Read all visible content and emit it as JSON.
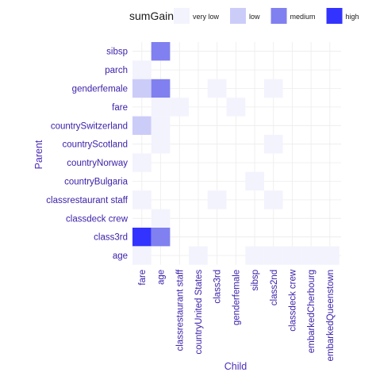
{
  "chart_data": {
    "type": "heatmap",
    "title": "",
    "xlabel": "Child",
    "ylabel": "Parent",
    "legend": {
      "title": "sumGain",
      "position": "top",
      "levels": [
        {
          "label": "very low",
          "color": "#f3f3fe"
        },
        {
          "label": "low",
          "color": "#ccccf9"
        },
        {
          "label": "medium",
          "color": "#8080f0"
        },
        {
          "label": "high",
          "color": "#3333ff"
        }
      ]
    },
    "x_categories": [
      "fare",
      "age",
      "classrestaurant staff",
      "countryUnited States",
      "class3rd",
      "genderfemale",
      "sibsp",
      "class2nd",
      "classdeck crew",
      "embarkedCherbourg",
      "embarkedQueenstown"
    ],
    "y_categories": [
      "sibsp",
      "parch",
      "genderfemale",
      "fare",
      "countrySwitzerland",
      "countryScotland",
      "countryNorway",
      "countryBulgaria",
      "classrestaurant staff",
      "classdeck crew",
      "class3rd",
      "age"
    ],
    "cells": [
      {
        "parent": "sibsp",
        "child": "age",
        "level": "medium"
      },
      {
        "parent": "parch",
        "child": "fare",
        "level": "very low"
      },
      {
        "parent": "genderfemale",
        "child": "fare",
        "level": "low"
      },
      {
        "parent": "genderfemale",
        "child": "age",
        "level": "medium"
      },
      {
        "parent": "genderfemale",
        "child": "class3rd",
        "level": "very low"
      },
      {
        "parent": "genderfemale",
        "child": "class2nd",
        "level": "very low"
      },
      {
        "parent": "fare",
        "child": "age",
        "level": "very low"
      },
      {
        "parent": "fare",
        "child": "classrestaurant staff",
        "level": "very low"
      },
      {
        "parent": "fare",
        "child": "genderfemale",
        "level": "very low"
      },
      {
        "parent": "countrySwitzerland",
        "child": "fare",
        "level": "low"
      },
      {
        "parent": "countrySwitzerland",
        "child": "age",
        "level": "very low"
      },
      {
        "parent": "countryScotland",
        "child": "age",
        "level": "very low"
      },
      {
        "parent": "countryScotland",
        "child": "class2nd",
        "level": "very low"
      },
      {
        "parent": "countryNorway",
        "child": "fare",
        "level": "very low"
      },
      {
        "parent": "countryBulgaria",
        "child": "sibsp",
        "level": "very low"
      },
      {
        "parent": "classrestaurant staff",
        "child": "fare",
        "level": "very low"
      },
      {
        "parent": "classrestaurant staff",
        "child": "class3rd",
        "level": "very low"
      },
      {
        "parent": "classrestaurant staff",
        "child": "class2nd",
        "level": "very low"
      },
      {
        "parent": "classdeck crew",
        "child": "age",
        "level": "very low"
      },
      {
        "parent": "class3rd",
        "child": "fare",
        "level": "high"
      },
      {
        "parent": "class3rd",
        "child": "age",
        "level": "medium"
      },
      {
        "parent": "age",
        "child": "fare",
        "level": "very low"
      },
      {
        "parent": "age",
        "child": "countryUnited States",
        "level": "very low"
      },
      {
        "parent": "age",
        "child": "sibsp",
        "level": "very low"
      },
      {
        "parent": "age",
        "child": "class2nd",
        "level": "very low"
      },
      {
        "parent": "age",
        "child": "classdeck crew",
        "level": "very low"
      },
      {
        "parent": "age",
        "child": "embarkedCherbourg",
        "level": "very low"
      },
      {
        "parent": "age",
        "child": "embarkedQueenstown",
        "level": "very low"
      }
    ],
    "grid": true
  },
  "colors": {
    "text": "#3a1ea8",
    "axis_title": "#4b2bb8",
    "legend_text": "#1a1a1a",
    "grid": "#ececec"
  }
}
